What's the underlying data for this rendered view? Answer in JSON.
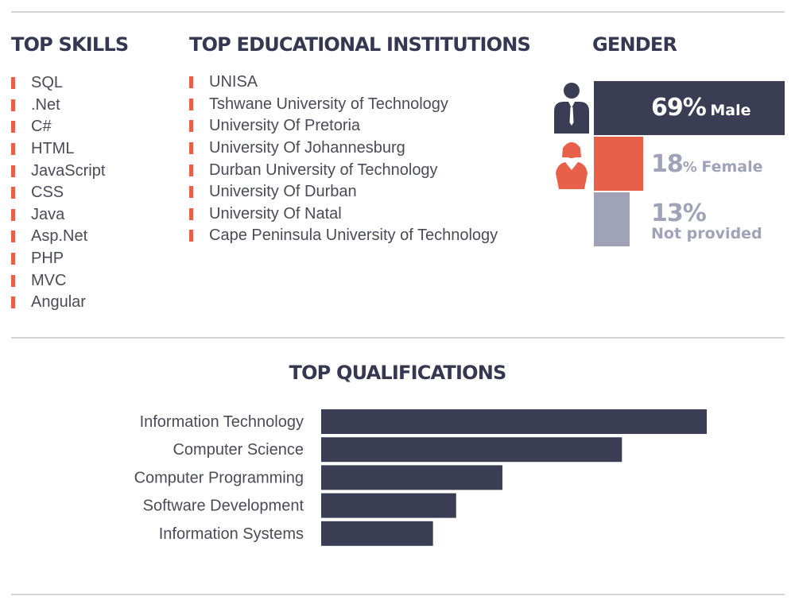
{
  "colors": {
    "accent": "#e8604a",
    "dark": "#3b3d55",
    "grey": "#9fa2b6",
    "text": "#4a4b57"
  },
  "skills": {
    "title": "TOP SKILLS",
    "items": [
      "SQL",
      ".Net",
      "C#",
      "HTML",
      "JavaScript",
      "CSS",
      "Java",
      "Asp.Net",
      "PHP",
      "MVC",
      "Angular"
    ]
  },
  "institutions": {
    "title": "TOP EDUCATIONAL INSTITUTIONS",
    "items": [
      "UNISA",
      "Tshwane University of Technology",
      "University Of Pretoria",
      "University Of Johannesburg",
      "Durban University of Technology",
      "University Of Durban",
      "University Of Natal",
      "Cape Peninsula University of Technology"
    ]
  },
  "gender": {
    "title": "GENDER",
    "male": {
      "value": 69,
      "pct_text": "69%",
      "label": "Male",
      "icon": "male-person-icon"
    },
    "female": {
      "value": 18,
      "pct_text": "18",
      "unit_text": "%",
      "label": "Female",
      "icon": "female-person-icon"
    },
    "not_provided": {
      "value": 13,
      "pct_text": "13%",
      "label": "Not provided"
    }
  },
  "qualifications": {
    "title": "TOP QUALIFICATIONS"
  },
  "chart_data": {
    "type": "bar",
    "orientation": "horizontal",
    "title": "TOP QUALIFICATIONS",
    "categories": [
      "Information Technology",
      "Computer Science",
      "Computer Programming",
      "Software Development",
      "Information Systems"
    ],
    "values": [
      100,
      78,
      47,
      35,
      29
    ],
    "xlim": [
      0,
      100
    ],
    "grid": false,
    "legend": "none"
  }
}
